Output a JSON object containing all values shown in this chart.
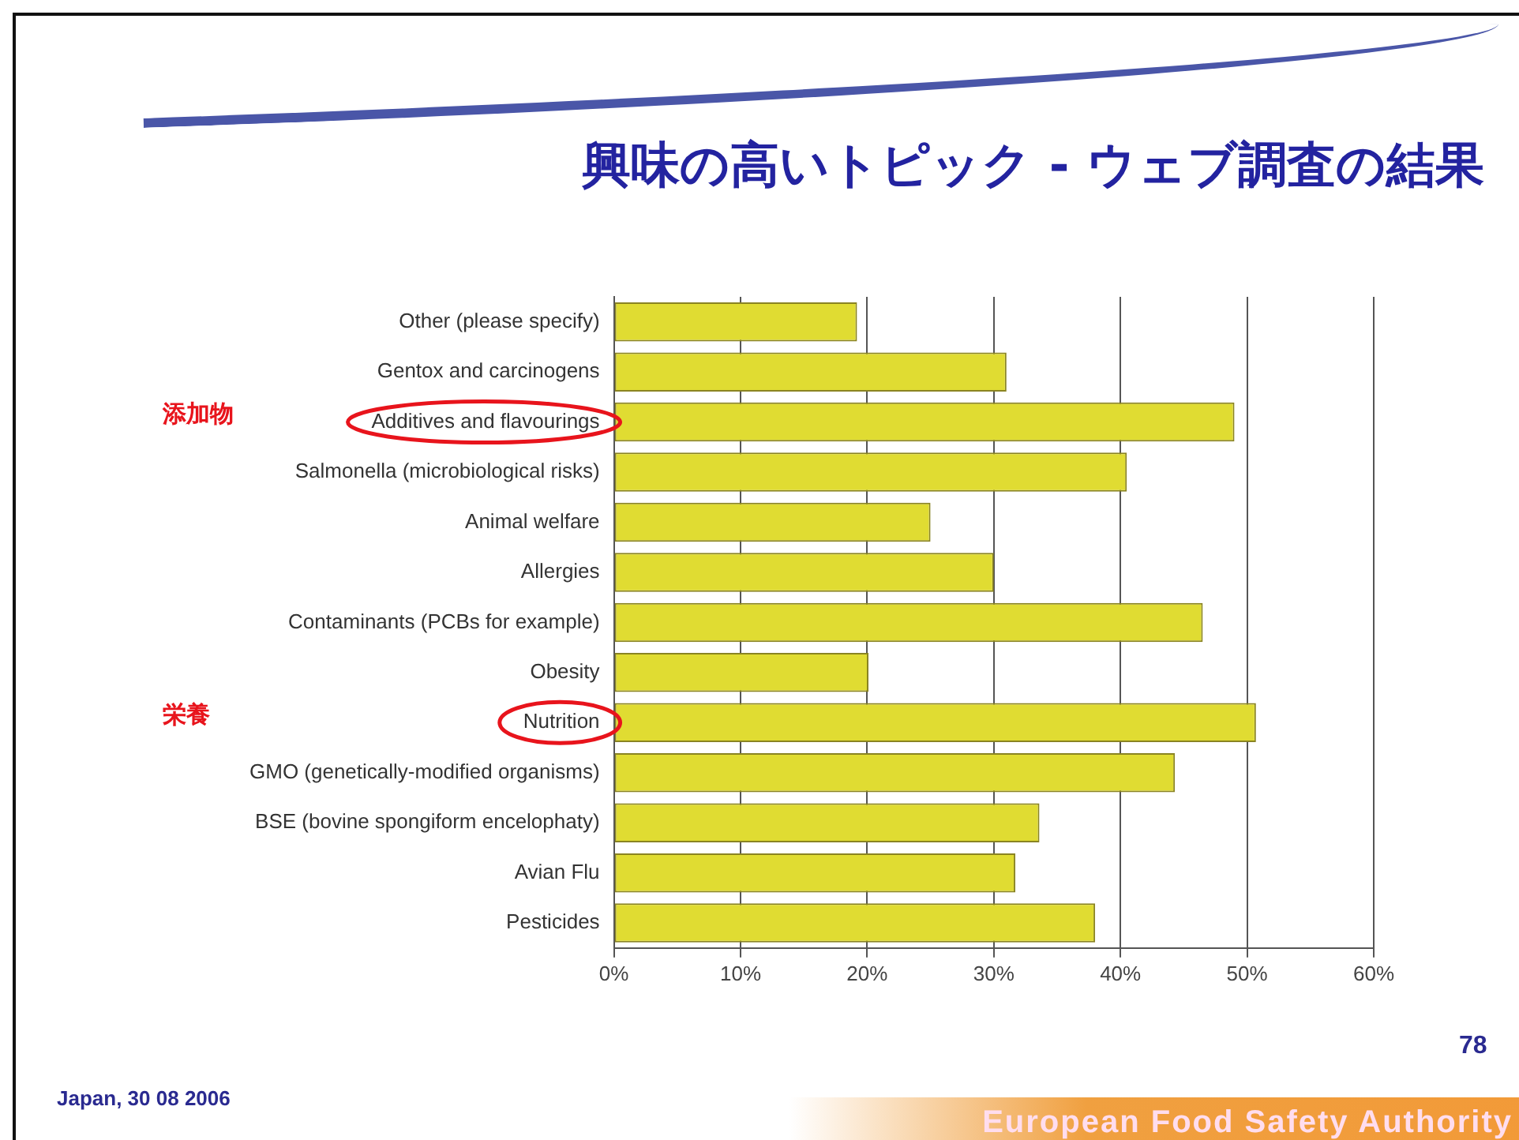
{
  "chart_data": {
    "type": "bar",
    "orientation": "horizontal",
    "title": "興味の高いトピック - ウェブ調査の結果",
    "categories": [
      "Other (please specify)",
      "Gentox and carcinogens",
      "Additives and flavourings",
      "Salmonella (microbiological risks)",
      "Animal welfare",
      "Allergies",
      "Contaminants (PCBs for example)",
      "Obesity",
      "Nutrition",
      "GMO (genetically-modified organisms)",
      "BSE (bovine spongiform encelophaty)",
      "Avian Flu",
      "Pesticides"
    ],
    "values": [
      19.2,
      31.0,
      49.0,
      40.5,
      25.0,
      30.0,
      46.5,
      20.1,
      50.7,
      44.3,
      33.6,
      31.7,
      38.0
    ],
    "color": "#e0dc32",
    "xlim": [
      0,
      60
    ],
    "xticks": [
      {
        "value": 0,
        "label": "0%"
      },
      {
        "value": 10,
        "label": "10%"
      },
      {
        "value": 20,
        "label": "20%"
      },
      {
        "value": 30,
        "label": "30%"
      },
      {
        "value": 40,
        "label": "40%"
      },
      {
        "value": 50,
        "label": "50%"
      },
      {
        "value": 60,
        "label": "60%"
      }
    ],
    "grid": "x",
    "legend": false,
    "annotations": [
      "添加物",
      "栄養",
      "Japan, 30 08 2006",
      "78",
      "European Food Safety Authority"
    ]
  }
}
